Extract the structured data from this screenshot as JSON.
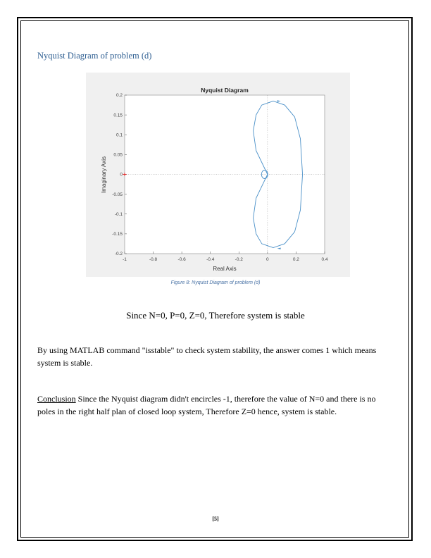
{
  "heading": "Nyquist Diagram of problem (d)",
  "figure": {
    "caption": "Figure 8: Nyquist Diagram of problem (d)"
  },
  "chart_data": {
    "type": "line",
    "title": "Nyquist Diagram",
    "xlabel": "Real Axis",
    "ylabel": "Imaginary Axis",
    "xlim": [
      -1,
      0.4
    ],
    "ylim": [
      -0.2,
      0.2
    ],
    "xticks": [
      "-1",
      "-0.8",
      "-0.6",
      "-0.4",
      "-0.2",
      "0",
      "0.2",
      "0.4"
    ],
    "yticks": [
      "0.2",
      "0.15",
      "0.1",
      "0.05",
      "0",
      "-0.05",
      "-0.1",
      "-0.15",
      "-0.2"
    ],
    "grid": false,
    "critical_point": [
      -1,
      0
    ],
    "series": [
      {
        "x": [
          0,
          -0.08,
          -0.1,
          -0.08,
          -0.04,
          0.04,
          0.12,
          0.19,
          0.23,
          0.245,
          0.23,
          0.19,
          0.12,
          0.04,
          -0.04,
          -0.08,
          -0.1,
          -0.08,
          0
        ],
        "y": [
          0,
          0.06,
          0.11,
          0.15,
          0.175,
          0.185,
          0.175,
          0.145,
          0.09,
          0,
          -0.09,
          -0.145,
          -0.175,
          -0.185,
          -0.175,
          -0.15,
          -0.11,
          -0.06,
          0
        ]
      }
    ],
    "arrows": [
      [
        0.08,
        0.185
      ],
      [
        0.08,
        -0.187
      ]
    ],
    "colors": {
      "curve": "#4a90c8",
      "critical": "#e03030",
      "frame_bg": "#f0f0f0",
      "plot_bg": "#ffffff"
    }
  },
  "statement": "Since N=0, P=0, Z=0, Therefore system is stable",
  "paragraph1": "By using MATLAB command \"isstable\" to check system stability, the answer comes 1 which means system is stable.",
  "conclusion": {
    "label": "Conclusion",
    "text": " Since the Nyquist diagram didn't encircles -1, therefore the value of N=0 and there is no poles in the right half plan of closed loop system, Therefore Z=0 hence, system is stable."
  },
  "page_number": "[5]"
}
